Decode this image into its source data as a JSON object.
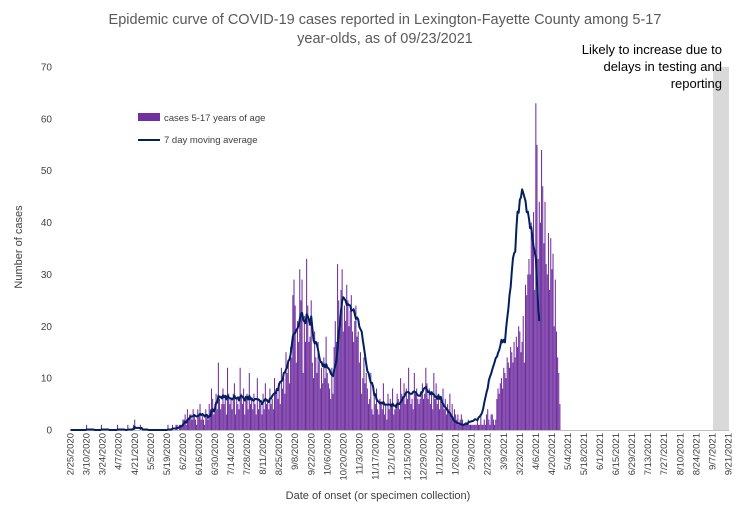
{
  "chart_data": {
    "type": "bar",
    "title_lines": [
      "Epidemic curve of COVID-19 cases reported in Lexington-Fayette County among 5-17",
      "year-olds, as of 09/23/2021"
    ],
    "xlabel": "Date of onset (or specimen collection)",
    "ylabel": "Number of cases",
    "ylim": [
      0,
      70
    ],
    "yticks": [
      0,
      10,
      20,
      30,
      40,
      50,
      60,
      70
    ],
    "grid": false,
    "legend_position": "upper-left",
    "x_start": "2/25/2020",
    "x_end": "9/21/2021",
    "x_tick_labels": [
      "2/25/2020",
      "3/10/2020",
      "3/24/2020",
      "4/7/2020",
      "4/21/2020",
      "5/5/2020",
      "5/19/2020",
      "6/2/2020",
      "6/16/2020",
      "6/30/2020",
      "7/14/2020",
      "7/28/2020",
      "8/11/2020",
      "8/25/2020",
      "9/8/2020",
      "9/22/2020",
      "10/6/2020",
      "10/20/2020",
      "11/3/2020",
      "11/17/2020",
      "12/1/2020",
      "12/15/2020",
      "12/29/2020",
      "1/12/2021",
      "1/26/2021",
      "2/9/2021",
      "2/23/2021",
      "3/9/2021",
      "3/23/2021",
      "4/6/2021",
      "4/20/2021",
      "5/4/2021",
      "5/18/2021",
      "6/1/2021",
      "6/15/2021",
      "6/29/2021",
      "7/13/2021",
      "7/27/2021",
      "8/10/2021",
      "8/24/2021",
      "9/7/2021",
      "9/21/2021"
    ],
    "shaded_region": {
      "start": "9/8/2021",
      "end": "9/21/2021",
      "note_lines": [
        "Likely to increase due to",
        "delays in testing and",
        "reporting"
      ]
    },
    "series": [
      {
        "name": "cases 5-17 years of age",
        "kind": "bar",
        "color": "#7030a0",
        "unit": "cases per day",
        "values": [
          0,
          0,
          0,
          0,
          0,
          0,
          0,
          0,
          0,
          0,
          0,
          0,
          0,
          0,
          1,
          0,
          0,
          0,
          0,
          0,
          0,
          0,
          0,
          0,
          0,
          0,
          0,
          1,
          0,
          0,
          0,
          0,
          0,
          0,
          0,
          0,
          0,
          0,
          0,
          0,
          0,
          1,
          0,
          0,
          0,
          0,
          0,
          0,
          0,
          0,
          1,
          0,
          0,
          0,
          0,
          1,
          2,
          0,
          0,
          0,
          0,
          1,
          0,
          0,
          0,
          0,
          0,
          0,
          0,
          0,
          0,
          0,
          0,
          0,
          0,
          0,
          0,
          0,
          0,
          0,
          0,
          0,
          0,
          0,
          0,
          1,
          0,
          0,
          0,
          1,
          0,
          0,
          1,
          1,
          0,
          1,
          1,
          1,
          2,
          2,
          3,
          1,
          4,
          2,
          3,
          3,
          2,
          4,
          3,
          2,
          1,
          4,
          3,
          5,
          2,
          3,
          2,
          1,
          4,
          3,
          2,
          5,
          4,
          8,
          6,
          3,
          5,
          7,
          4,
          13,
          6,
          4,
          5,
          8,
          5,
          6,
          3,
          12,
          7,
          5,
          6,
          4,
          7,
          9,
          3,
          6,
          5,
          4,
          12,
          7,
          5,
          8,
          3,
          6,
          7,
          4,
          11,
          5,
          6,
          4,
          7,
          5,
          3,
          10,
          4,
          6,
          5,
          3,
          7,
          4,
          9,
          5,
          6,
          4,
          8,
          5,
          6,
          4,
          10,
          7,
          8,
          6,
          9,
          5,
          12,
          8,
          10,
          7,
          15,
          11,
          13,
          9,
          16,
          14,
          26,
          29,
          24,
          13,
          21,
          17,
          31,
          25,
          29,
          11,
          22,
          17,
          33,
          24,
          17,
          18,
          25,
          13,
          10,
          19,
          14,
          11,
          17,
          13,
          8,
          12,
          9,
          14,
          10,
          18,
          11,
          9,
          8,
          6,
          12,
          7,
          16,
          21,
          17,
          32,
          25,
          22,
          27,
          31,
          19,
          24,
          21,
          28,
          25,
          20,
          23,
          26,
          19,
          17,
          21,
          24,
          18,
          19,
          13,
          15,
          7,
          10,
          14,
          9,
          11,
          8,
          5,
          6,
          11,
          4,
          3,
          7,
          5,
          8,
          4,
          3,
          6,
          5,
          4,
          9,
          3,
          5,
          2,
          7,
          4,
          6,
          5,
          8,
          3,
          4,
          5,
          7,
          6,
          4,
          10,
          7,
          6,
          9,
          5,
          8,
          6,
          12,
          7,
          5,
          6,
          4,
          11,
          7,
          8,
          6,
          5,
          6,
          7,
          9,
          6,
          7,
          12,
          9,
          6,
          8,
          5,
          7,
          4,
          11,
          6,
          9,
          5,
          7,
          4,
          6,
          5,
          8,
          4,
          6,
          3,
          5,
          4,
          7,
          3,
          5,
          2,
          4,
          3,
          2,
          3,
          1,
          2,
          3,
          2,
          1,
          1,
          1,
          1,
          2,
          1,
          1,
          1,
          1,
          1,
          1,
          1,
          2,
          1,
          1,
          3,
          1,
          1,
          2,
          1,
          3,
          4,
          2,
          1,
          3,
          3,
          2,
          1,
          2,
          6,
          8,
          7,
          9,
          10,
          8,
          12,
          11,
          10,
          14,
          13,
          12,
          16,
          15,
          13,
          17,
          14,
          18,
          16,
          20,
          19,
          15,
          17,
          22,
          13,
          28,
          26,
          30,
          33,
          30,
          40,
          37,
          42,
          27,
          63,
          55,
          33,
          44,
          40,
          54,
          47,
          36,
          44,
          32,
          30,
          38,
          27,
          37,
          31,
          34,
          20,
          29,
          19,
          14,
          11,
          5
        ]
      },
      {
        "name": "7 day moving average",
        "kind": "line",
        "color": "#002060",
        "unit": "cases per day",
        "values": [
          0,
          0,
          0,
          0,
          0,
          0,
          0,
          0,
          0,
          0,
          0,
          0,
          0,
          0,
          0.1,
          0.1,
          0.1,
          0.1,
          0.1,
          0.1,
          0.1,
          0,
          0,
          0,
          0,
          0,
          0,
          0.1,
          0.1,
          0.1,
          0.1,
          0.1,
          0.1,
          0.1,
          0,
          0,
          0,
          0,
          0,
          0,
          0,
          0.1,
          0.1,
          0.1,
          0.1,
          0.1,
          0.1,
          0.1,
          0,
          0,
          0.1,
          0.1,
          0.1,
          0.1,
          0.1,
          0.3,
          0.6,
          0.4,
          0.4,
          0.4,
          0.4,
          0.3,
          0.4,
          0.1,
          0.1,
          0.1,
          0.1,
          0.1,
          0,
          0,
          0,
          0,
          0,
          0,
          0,
          0,
          0,
          0,
          0,
          0,
          0,
          0,
          0,
          0,
          0,
          0.1,
          0.1,
          0.1,
          0.1,
          0.3,
          0.3,
          0.3,
          0.3,
          0.4,
          0.4,
          0.6,
          0.7,
          0.7,
          1,
          1.3,
          1.6,
          1.4,
          2,
          2.1,
          2.4,
          2.6,
          2.6,
          2.7,
          2.9,
          2.7,
          2.6,
          2.7,
          2.9,
          3.1,
          2.9,
          3.1,
          2.9,
          2.6,
          2.9,
          2.9,
          2.4,
          2.7,
          2.7,
          3.7,
          4,
          3.6,
          4.1,
          5.3,
          5.3,
          6.6,
          6.3,
          6.4,
          6.1,
          6.7,
          6.3,
          6.6,
          5.9,
          6.6,
          6.3,
          6.1,
          6.1,
          5.9,
          6.1,
          6.6,
          6.1,
          6.1,
          6.3,
          5.7,
          6.4,
          6.6,
          6.4,
          6.1,
          5.7,
          6.4,
          6.4,
          5.9,
          6.6,
          5.9,
          6.1,
          5.7,
          5.7,
          6,
          6,
          5.9,
          5.9,
          5.6,
          5.6,
          5,
          5.4,
          5.7,
          6,
          5.7,
          5.6,
          5.4,
          6.1,
          6.1,
          6.6,
          6.9,
          7.1,
          7.1,
          7.9,
          7.7,
          8.9,
          9.3,
          9.4,
          9.6,
          11,
          11.1,
          11.7,
          12.1,
          13.3,
          13.6,
          14.6,
          16.4,
          18.1,
          18.6,
          18.7,
          19.3,
          19.6,
          20.1,
          21.4,
          22.4,
          22.6,
          21.3,
          20.9,
          20.6,
          22.3,
          21.9,
          21.3,
          20.3,
          21.9,
          19.6,
          17.3,
          16.7,
          17,
          16.4,
          15.4,
          14.1,
          13.1,
          13.1,
          12.3,
          12.7,
          12.1,
          12.7,
          12.1,
          11.9,
          11.6,
          10.9,
          10.6,
          10.4,
          11.6,
          12.4,
          13.4,
          15.9,
          18.9,
          20.4,
          23.1,
          24.9,
          25.6,
          25.3,
          24.9,
          24.1,
          24.3,
          24.1,
          24,
          23,
          23.1,
          23.3,
          22.3,
          21.4,
          21.7,
          21.3,
          19.9,
          19.4,
          19,
          17.3,
          15.9,
          14.3,
          12.7,
          11.3,
          11,
          9.9,
          9.1,
          9.1,
          8.3,
          6.7,
          6.9,
          5.9,
          5.6,
          5.4,
          5.1,
          5.3,
          5.1,
          5.4,
          4.9,
          4.9,
          4.9,
          4.9,
          4.9,
          4.9,
          4.6,
          5.1,
          4.7,
          4.7,
          4.4,
          5.1,
          5,
          5,
          5.4,
          5.7,
          6.3,
          6.4,
          6.9,
          7.3,
          7.3,
          7.3,
          7,
          7,
          7,
          7.4,
          7.4,
          7.3,
          7,
          6.7,
          6.6,
          6.6,
          7.3,
          7.3,
          7.9,
          8.1,
          8.3,
          7.7,
          7.3,
          7.4,
          6.9,
          7.3,
          6.9,
          6.9,
          6.4,
          6.4,
          6,
          6.7,
          6,
          6.4,
          5.3,
          5.1,
          4.6,
          4.4,
          4.1,
          3.7,
          3.4,
          3.3,
          2.7,
          2.6,
          2,
          1.7,
          1.6,
          1.4,
          1.3,
          1.3,
          1.1,
          1.1,
          1,
          1,
          1.1,
          1.3,
          1.1,
          1.4,
          1.6,
          1.6,
          1.7,
          1.7,
          1.9,
          2.1,
          2,
          1.9,
          2.4,
          2.6,
          2.9,
          3.3,
          4.1,
          5.3,
          6.3,
          7.3,
          8.1,
          9.6,
          10.3,
          10.9,
          11.7,
          12.4,
          13.1,
          13.9,
          14.1,
          14.9,
          15.4,
          16.3,
          17.4,
          16.9,
          17.4,
          16.9,
          19.6,
          21.6,
          23.4,
          26,
          27.6,
          30.6,
          33.1,
          34.1,
          34.4,
          38.9,
          42.1,
          41.9,
          44.4,
          44.9,
          46.4,
          45.7,
          44.9,
          44.1,
          42,
          42.1,
          40.7,
          38.9,
          39.1,
          37,
          35.4,
          34.3,
          33.1,
          28.1,
          23.9,
          21
        ]
      }
    ]
  }
}
